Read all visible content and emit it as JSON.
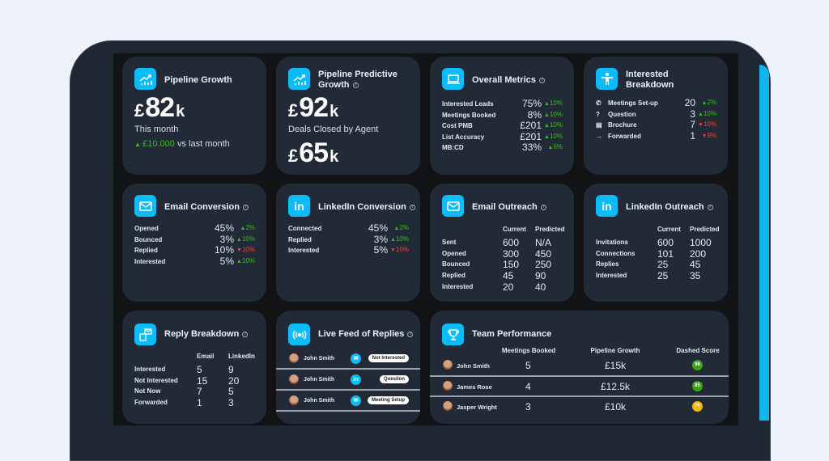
{
  "pipeline_growth": {
    "title": "Pipeline Growth",
    "currency": "£",
    "amount": "82",
    "suffix": "k",
    "period": "This month",
    "change": "£10.000",
    "change_suffix": "vs last month"
  },
  "predictive_growth": {
    "title_line1": "Pipeline Predictive",
    "title_line2": "Growth",
    "currency": "£",
    "amount": "92",
    "suffix": "k",
    "caption": "Deals Closed by Agent",
    "amount2": "65"
  },
  "overall_metrics": {
    "title": "Overall Metrics",
    "rows": [
      {
        "label": "Interested Leads",
        "value": "75%",
        "delta": "10%",
        "dir": "up"
      },
      {
        "label": "Meetings Booked",
        "value": "8%",
        "delta": "10%",
        "dir": "up"
      },
      {
        "label": "Cost PMB",
        "value": "£201",
        "delta": "10%",
        "dir": "up"
      },
      {
        "label": "List Accuracy",
        "value": "£201",
        "delta": "10%",
        "dir": "up"
      },
      {
        "label": "MB:CD",
        "value": "33%",
        "delta": "6%",
        "dir": "up"
      }
    ]
  },
  "interested_breakdown": {
    "title_line1": "Interested",
    "title_line2": "Breakdown",
    "rows": [
      {
        "icon": "phone-icon",
        "glyph": "✆",
        "label": "Meetings Set-up",
        "value": "20",
        "delta": "2%",
        "dir": "up"
      },
      {
        "icon": "question-icon",
        "glyph": "?",
        "label": "Question",
        "value": "3",
        "delta": "10%",
        "dir": "up"
      },
      {
        "icon": "document-icon",
        "glyph": "▤",
        "label": "Brochure",
        "value": "7",
        "delta": "10%",
        "dir": "dn"
      },
      {
        "icon": "arrow-right-icon",
        "glyph": "→",
        "label": "Forwarded",
        "value": "1",
        "delta": "9%",
        "dir": "dn"
      }
    ]
  },
  "email_conversion": {
    "title": "Email Conversion",
    "rows": [
      {
        "label": "Opened",
        "value": "45%",
        "delta": "2%",
        "dir": "up"
      },
      {
        "label": "Bounced",
        "value": "3%",
        "delta": "10%",
        "dir": "up"
      },
      {
        "label": "Replied",
        "value": "10%",
        "delta": "10%",
        "dir": "dn"
      },
      {
        "label": "Interested",
        "value": "5%",
        "delta": "10%",
        "dir": "up"
      }
    ]
  },
  "linkedin_conversion": {
    "title": "LinkedIn Conversion",
    "rows": [
      {
        "label": "Connected",
        "value": "45%",
        "delta": "2%",
        "dir": "up"
      },
      {
        "label": "Replied",
        "value": "3%",
        "delta": "10%",
        "dir": "up"
      },
      {
        "label": "Interested",
        "value": "5%",
        "delta": "10%",
        "dir": "dn"
      }
    ]
  },
  "email_outreach": {
    "title": "Email Outreach",
    "headers": [
      "Current",
      "Predicted"
    ],
    "rows": [
      {
        "label": "Sent",
        "a": "600",
        "b": "N/A"
      },
      {
        "label": "Opened",
        "a": "300",
        "b": "450"
      },
      {
        "label": "Bounced",
        "a": "150",
        "b": "250"
      },
      {
        "label": "Replied",
        "a": "45",
        "b": "90"
      },
      {
        "label": "Interested",
        "a": "20",
        "b": "40"
      }
    ]
  },
  "linkedin_outreach": {
    "title": "LinkedIn Outreach",
    "headers": [
      "Current",
      "Predicted"
    ],
    "rows": [
      {
        "label": "Invitations",
        "a": "600",
        "b": "1000"
      },
      {
        "label": "Connections",
        "a": "101",
        "b": "200"
      },
      {
        "label": "Replies",
        "a": "25",
        "b": "45"
      },
      {
        "label": "Interested",
        "a": "25",
        "b": "35"
      }
    ]
  },
  "reply_breakdown": {
    "title": "Reply Breakdown",
    "headers": [
      "Email",
      "LinkedIn"
    ],
    "rows": [
      {
        "label": "Interested",
        "a": "5",
        "b": "9"
      },
      {
        "label": "Not Interested",
        "a": "15",
        "b": "20"
      },
      {
        "label": "Not Now",
        "a": "7",
        "b": "5"
      },
      {
        "label": "Forwarded",
        "a": "1",
        "b": "3"
      }
    ]
  },
  "live_feed": {
    "title": "Live Feed of Replies",
    "rows": [
      {
        "name": "John Smith",
        "channel": "email",
        "status": "Not Interested"
      },
      {
        "name": "John Smith",
        "channel": "linkedin",
        "status": "Question"
      },
      {
        "name": "John Smith",
        "channel": "email",
        "status": "Meeting Setup"
      }
    ]
  },
  "team_performance": {
    "title": "Team Performance",
    "headers": [
      "Meetings Booked",
      "Pipeline Growth",
      "Dashed Score"
    ],
    "rows": [
      {
        "name": "John Smith",
        "meetings": "5",
        "pipeline": "£15k",
        "score": "98",
        "color": "#3aa514"
      },
      {
        "name": "James Rose",
        "meetings": "4",
        "pipeline": "£12.5k",
        "score": "85",
        "color": "#3aa514"
      },
      {
        "name": "Jasper Wright",
        "meetings": "3",
        "pipeline": "£10k",
        "score": "76",
        "color": "#f5b700"
      }
    ]
  },
  "colors": {
    "accent": "#0bbcf8",
    "up": "#3fb62a",
    "down": "#e0473b",
    "card": "#212a36"
  }
}
